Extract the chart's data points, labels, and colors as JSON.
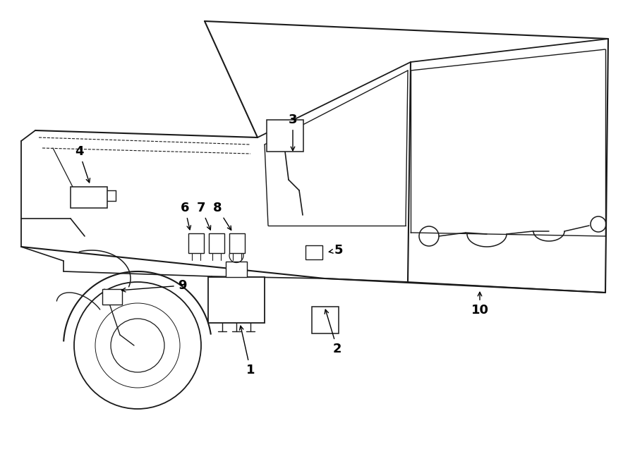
{
  "bg_color": "#ffffff",
  "line_color": "#1a1a1a",
  "label_color": "#000000",
  "fig_width": 9.0,
  "fig_height": 6.61,
  "dpi": 100
}
